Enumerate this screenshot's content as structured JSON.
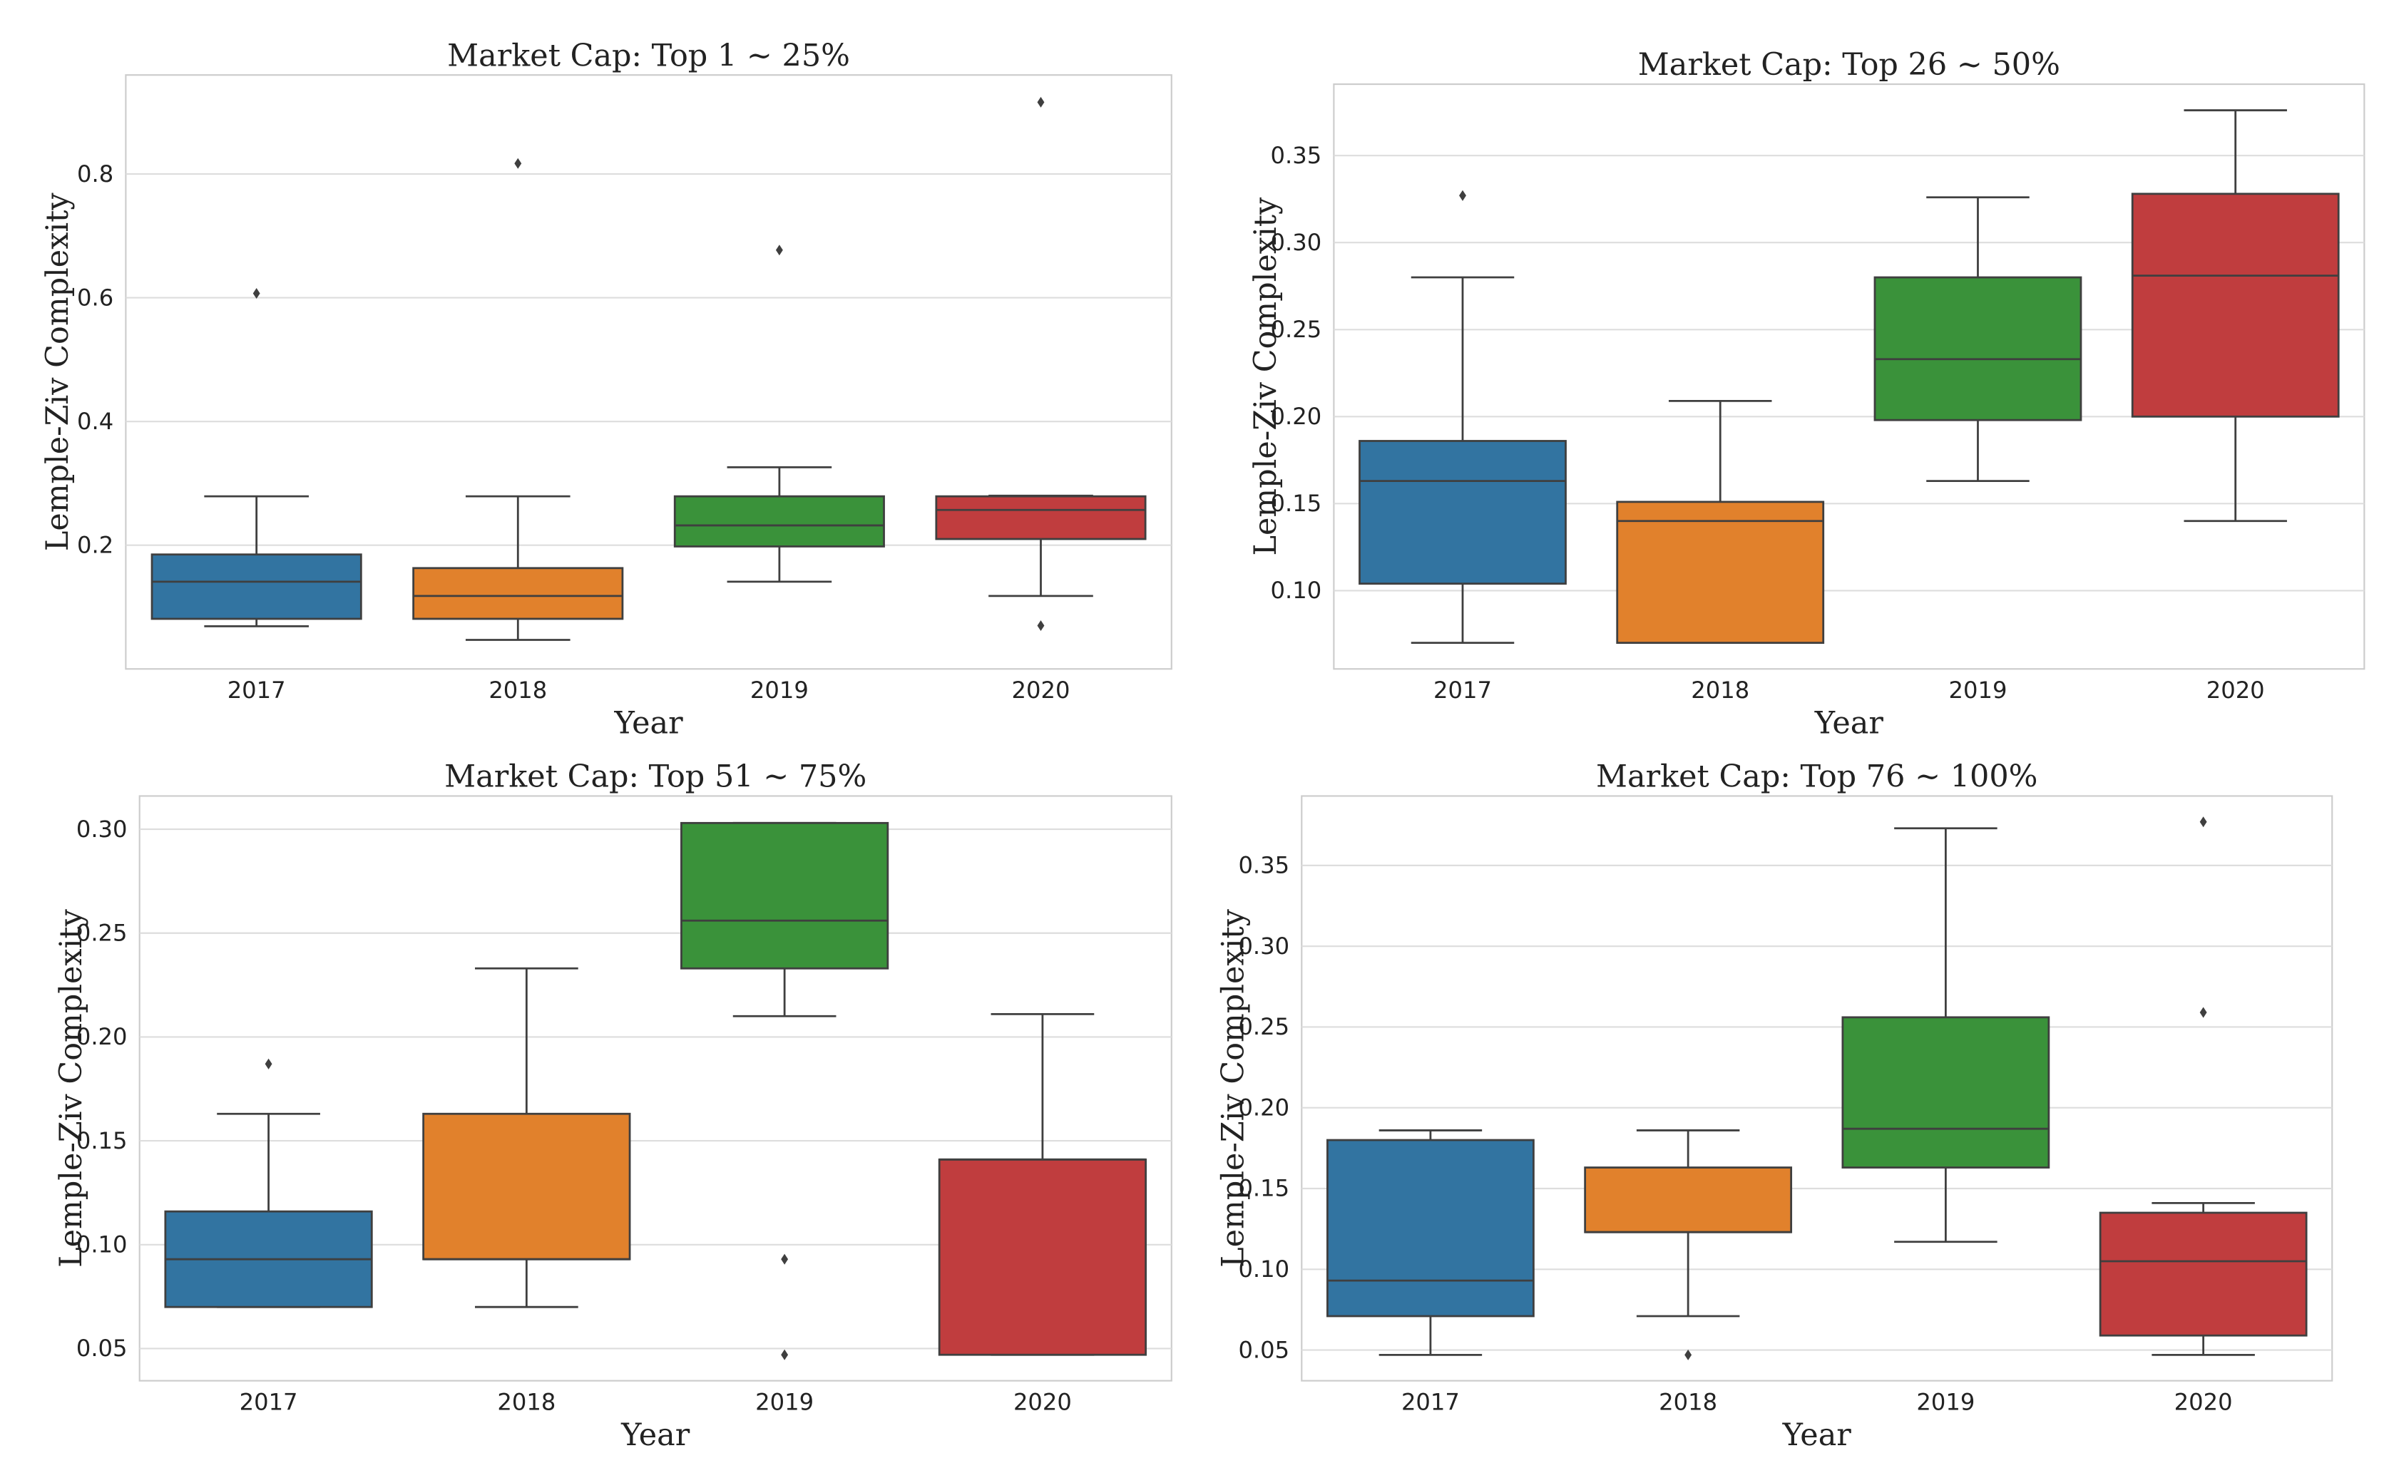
{
  "chart_data": [
    {
      "type": "box",
      "title": "Market Cap: Top 1 ~ 25%",
      "x_label": "Year",
      "y_label": "Lemple-Ziv Complexity",
      "categories": [
        "2017",
        "2018",
        "2019",
        "2020"
      ],
      "colors": [
        "#3274a1",
        "#e1812c",
        "#3a923a",
        "#c03d3e"
      ],
      "ylim": [
        0.0,
        0.96
      ],
      "yticks": [
        0.2,
        0.4,
        0.6,
        0.8
      ],
      "grid": true,
      "boxes": [
        {
          "whislo": 0.069,
          "q1": 0.081,
          "med": 0.141,
          "q3": 0.185,
          "whishi": 0.279,
          "fliers": [
            0.607
          ]
        },
        {
          "whislo": 0.047,
          "q1": 0.081,
          "med": 0.118,
          "q3": 0.163,
          "whishi": 0.279,
          "fliers": [
            0.817
          ]
        },
        {
          "whislo": 0.141,
          "q1": 0.198,
          "med": 0.232,
          "q3": 0.279,
          "whishi": 0.326,
          "fliers": [
            0.677
          ]
        },
        {
          "whislo": 0.118,
          "q1": 0.21,
          "med": 0.257,
          "q3": 0.279,
          "whishi": 0.28,
          "fliers": [
            0.916,
            0.07
          ]
        }
      ]
    },
    {
      "type": "box",
      "title": "Market Cap: Top 26 ~ 50%",
      "x_label": "Year",
      "y_label": "Lemple-Ziv Complexity",
      "categories": [
        "2017",
        "2018",
        "2019",
        "2020"
      ],
      "colors": [
        "#3274a1",
        "#e1812c",
        "#3a923a",
        "#c03d3e"
      ],
      "ylim": [
        0.055,
        0.391
      ],
      "yticks": [
        {
          "value": 0.1,
          "label": "0.10"
        },
        0.15,
        {
          "value": 0.2,
          "label": "0.20"
        },
        0.25,
        {
          "value": 0.3,
          "label": "0.30"
        },
        0.35
      ],
      "grid": true,
      "boxes": [
        {
          "whislo": 0.07,
          "q1": 0.104,
          "med": 0.163,
          "q3": 0.186,
          "whishi": 0.28,
          "fliers": [
            0.327
          ]
        },
        {
          "whislo": 0.07,
          "q1": 0.07,
          "med": 0.14,
          "q3": 0.151,
          "whishi": 0.209,
          "fliers": []
        },
        {
          "whislo": 0.163,
          "q1": 0.198,
          "med": 0.233,
          "q3": 0.28,
          "whishi": 0.326,
          "fliers": []
        },
        {
          "whislo": 0.14,
          "q1": 0.2,
          "med": 0.281,
          "q3": 0.328,
          "whishi": 0.376,
          "fliers": []
        }
      ]
    },
    {
      "type": "box",
      "title": "Market Cap: Top 51 ~ 75%",
      "x_label": "Year",
      "y_label": "Lemple-Ziv Complexity",
      "categories": [
        "2017",
        "2018",
        "2019",
        "2020"
      ],
      "colors": [
        "#3274a1",
        "#e1812c",
        "#3a923a",
        "#c03d3e"
      ],
      "ylim": [
        0.0345,
        0.316
      ],
      "yticks": [
        0.05,
        {
          "value": 0.1,
          "label": "0.10"
        },
        0.15,
        {
          "value": 0.2,
          "label": "0.20"
        },
        0.25,
        {
          "value": 0.3,
          "label": "0.30"
        }
      ],
      "grid": true,
      "boxes": [
        {
          "whislo": 0.07,
          "q1": 0.07,
          "med": 0.093,
          "q3": 0.116,
          "whishi": 0.163,
          "fliers": [
            0.187
          ]
        },
        {
          "whislo": 0.07,
          "q1": 0.093,
          "med": 0.093,
          "q3": 0.163,
          "whishi": 0.233,
          "fliers": []
        },
        {
          "whislo": 0.21,
          "q1": 0.233,
          "med": 0.256,
          "q3": 0.303,
          "whishi": 0.303,
          "fliers": [
            0.093,
            0.047
          ]
        },
        {
          "whislo": 0.047,
          "q1": 0.047,
          "med": 0.141,
          "q3": 0.141,
          "whishi": 0.211,
          "fliers": []
        }
      ]
    },
    {
      "type": "box",
      "title": "Market Cap: Top 76 ~ 100%",
      "x_label": "Year",
      "y_label": "Lemple-Ziv Complexity",
      "categories": [
        "2017",
        "2018",
        "2019",
        "2020"
      ],
      "colors": [
        "#3274a1",
        "#e1812c",
        "#3a923a",
        "#c03d3e"
      ],
      "ylim": [
        0.031,
        0.393
      ],
      "yticks": [
        0.05,
        {
          "value": 0.1,
          "label": "0.10"
        },
        0.15,
        {
          "value": 0.2,
          "label": "0.20"
        },
        0.25,
        {
          "value": 0.3,
          "label": "0.30"
        },
        0.35
      ],
      "grid": true,
      "boxes": [
        {
          "whislo": 0.047,
          "q1": 0.071,
          "med": 0.093,
          "q3": 0.18,
          "whishi": 0.186,
          "fliers": []
        },
        {
          "whislo": 0.071,
          "q1": 0.123,
          "med": 0.123,
          "q3": 0.163,
          "whishi": 0.186,
          "fliers": [
            0.047
          ]
        },
        {
          "whislo": 0.117,
          "q1": 0.163,
          "med": 0.187,
          "q3": 0.256,
          "whishi": 0.373,
          "fliers": []
        },
        {
          "whislo": 0.047,
          "q1": 0.059,
          "med": 0.105,
          "q3": 0.135,
          "whishi": 0.141,
          "fliers": [
            0.377,
            0.259
          ]
        }
      ]
    }
  ]
}
